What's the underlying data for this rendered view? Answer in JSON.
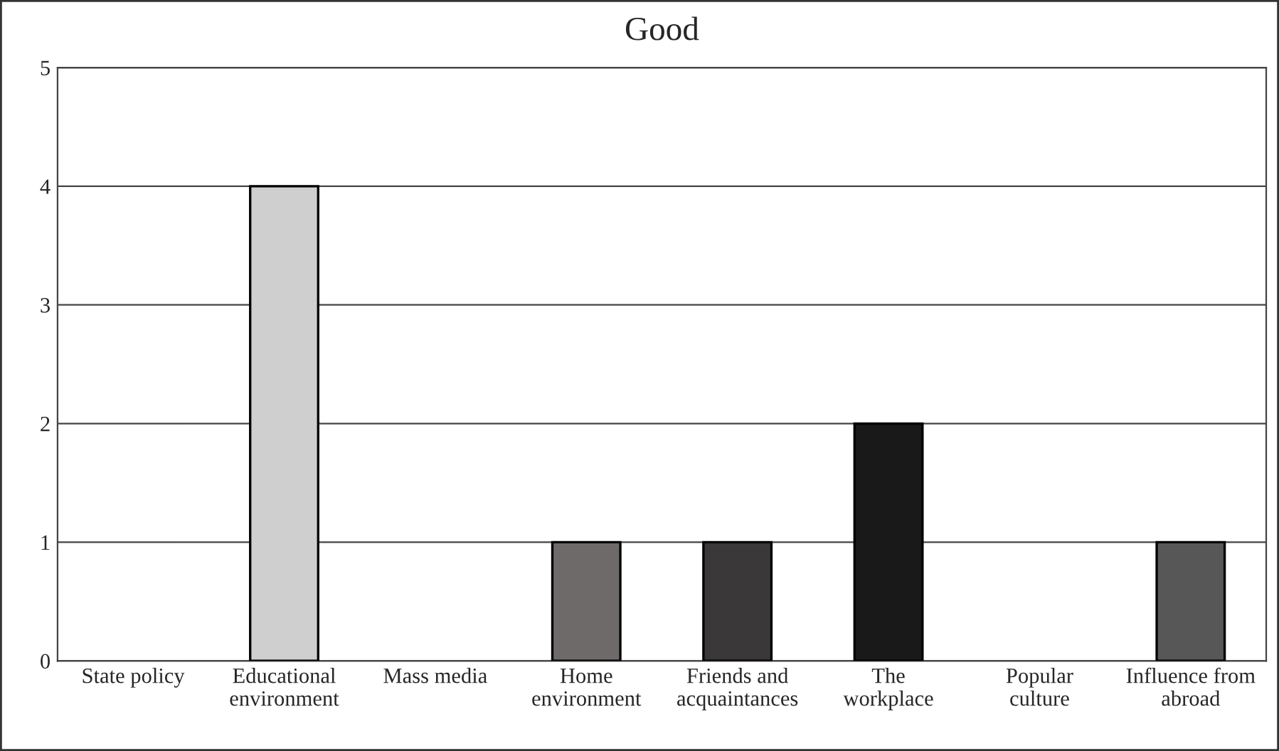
{
  "chart_data": {
    "type": "bar",
    "title": "Good",
    "categories": [
      "State policy",
      "Educational\nenvironment",
      "Mass media",
      "Home\nenvironment",
      "Friends and\nacquaintances",
      "The\nworkplace",
      "Popular\nculture",
      "Influence from\nabroad"
    ],
    "values": [
      0,
      4,
      0,
      1,
      1,
      2,
      0,
      1
    ],
    "colors": [
      null,
      "#d0cfd0",
      null,
      "#6f6a6a",
      "#3a3838",
      "#191919",
      null,
      "#575757"
    ],
    "ylim": [
      0,
      5
    ],
    "yticks": [
      0,
      1,
      2,
      3,
      4,
      5
    ],
    "grid": "y",
    "legend": false
  }
}
